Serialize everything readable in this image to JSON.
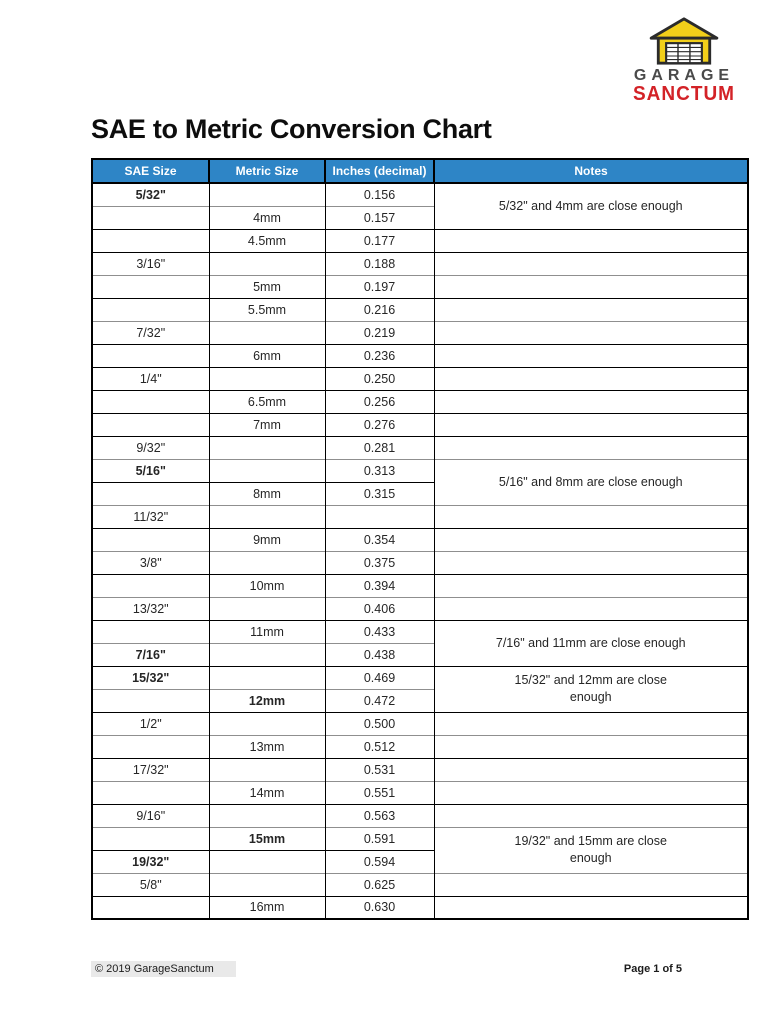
{
  "logo": {
    "line1": "GARAGE",
    "line2": "SANCTUM",
    "icon": "garage-icon",
    "garage_color": "#f2cf1a",
    "text_color": "#4a4a4a",
    "accent_color": "#d32227"
  },
  "title": "SAE to Metric Conversion Chart",
  "table": {
    "header_bg": "#2e85c6",
    "columns": [
      "SAE Size",
      "Metric Size",
      "Inches (decimal)",
      "Notes"
    ],
    "rows": [
      {
        "sae": "5/32\"",
        "metric": "",
        "inches": "0.156",
        "bold": "sae",
        "note": "5/32\" and 4mm are close enough",
        "note_span": 2
      },
      {
        "sae": "",
        "metric": "4mm",
        "inches": "0.157"
      },
      {
        "sae": "",
        "metric": "4.5mm",
        "inches": "0.177"
      },
      {
        "sae": "3/16\"",
        "metric": "",
        "inches": "0.188"
      },
      {
        "sae": "",
        "metric": "5mm",
        "inches": "0.197"
      },
      {
        "sae": "",
        "metric": "5.5mm",
        "inches": "0.216"
      },
      {
        "sae": "7/32\"",
        "metric": "",
        "inches": "0.219"
      },
      {
        "sae": "",
        "metric": "6mm",
        "inches": "0.236"
      },
      {
        "sae": "1/4\"",
        "metric": "",
        "inches": "0.250"
      },
      {
        "sae": "",
        "metric": "6.5mm",
        "inches": "0.256"
      },
      {
        "sae": "",
        "metric": "7mm",
        "inches": "0.276"
      },
      {
        "sae": "9/32\"",
        "metric": "",
        "inches": "0.281"
      },
      {
        "sae": "5/16\"",
        "metric": "",
        "inches": "0.313",
        "bold": "sae",
        "note": "5/16\" and 8mm are close enough",
        "note_span": 2
      },
      {
        "sae": "",
        "metric": "8mm",
        "inches": "0.315"
      },
      {
        "sae": "11/32\"",
        "metric": "",
        "inches": ""
      },
      {
        "sae": "",
        "metric": "9mm",
        "inches": "0.354"
      },
      {
        "sae": "3/8\"",
        "metric": "",
        "inches": "0.375"
      },
      {
        "sae": "",
        "metric": "10mm",
        "inches": "0.394"
      },
      {
        "sae": "13/32\"",
        "metric": "",
        "inches": "0.406"
      },
      {
        "sae": "",
        "metric": "11mm",
        "inches": "0.433",
        "note": "7/16\" and 11mm are close enough",
        "note_span": 2
      },
      {
        "sae": "7/16\"",
        "metric": "",
        "inches": "0.438",
        "bold": "sae"
      },
      {
        "sae": "15/32\"",
        "metric": "",
        "inches": "0.469",
        "bold": "sae",
        "note": "15/32\" and 12mm are close enough",
        "note_span": 2
      },
      {
        "sae": "",
        "metric": "12mm",
        "inches": "0.472",
        "bold": "metric"
      },
      {
        "sae": "1/2\"",
        "metric": "",
        "inches": "0.500"
      },
      {
        "sae": "",
        "metric": "13mm",
        "inches": "0.512"
      },
      {
        "sae": "17/32\"",
        "metric": "",
        "inches": "0.531"
      },
      {
        "sae": "",
        "metric": "14mm",
        "inches": "0.551"
      },
      {
        "sae": "9/16\"",
        "metric": "",
        "inches": "0.563"
      },
      {
        "sae": "",
        "metric": "15mm",
        "inches": "0.591",
        "bold": "metric",
        "note": "19/32\" and 15mm are close enough",
        "note_span": 2
      },
      {
        "sae": "19/32\"",
        "metric": "",
        "inches": "0.594",
        "bold": "sae"
      },
      {
        "sae": "5/8\"",
        "metric": "",
        "inches": "0.625"
      },
      {
        "sae": "",
        "metric": "16mm",
        "inches": "0.630"
      }
    ]
  },
  "footer": {
    "copyright": "© 2019 GarageSanctum",
    "page": "Page 1 of 5"
  }
}
